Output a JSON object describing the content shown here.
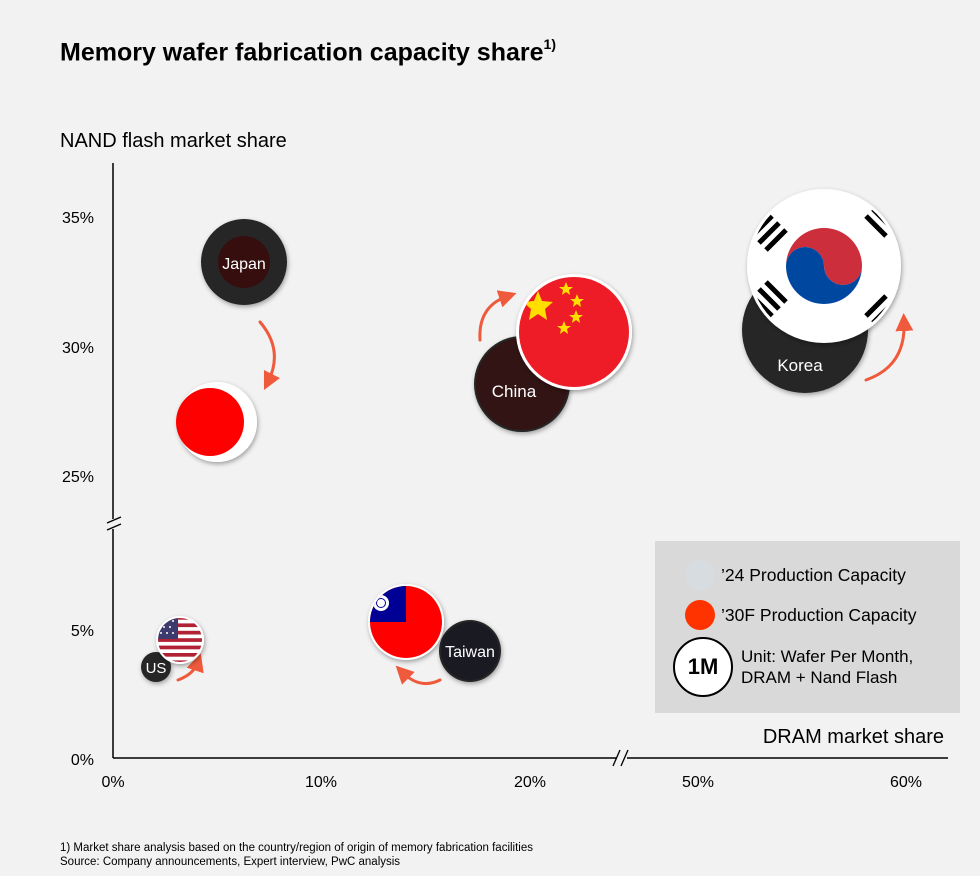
{
  "title": "Memory wafer fabrication capacity share",
  "title_sup": "1)",
  "chart_data": {
    "type": "bubble",
    "title": "Memory wafer fabrication capacity share",
    "xlabel": "DRAM market share",
    "ylabel": "NAND flash market share",
    "x_ticks": [
      "0%",
      "10%",
      "20%",
      "50%",
      "60%"
    ],
    "y_ticks": [
      "0%",
      "5%",
      "25%",
      "30%",
      "35%"
    ],
    "x_axis_break": "between 20% and 50%",
    "y_axis_break": "between 5% and 25%",
    "series": [
      {
        "name": "'24 Production Capacity",
        "points": [
          {
            "country": "Japan",
            "x": 6.2,
            "y": 33.3,
            "label": "Japan"
          },
          {
            "country": "China",
            "x": 19.5,
            "y": 28.6,
            "label": "China"
          },
          {
            "country": "Korea",
            "x": 54.5,
            "y": 30.7,
            "label": "Korea"
          },
          {
            "country": "US",
            "x": 2.0,
            "y": 3.5,
            "label": "US"
          },
          {
            "country": "Taiwan",
            "x": 17.0,
            "y": 4.2,
            "label": "Taiwan"
          }
        ]
      },
      {
        "name": "'30F Production Capacity",
        "points": [
          {
            "country": "Japan",
            "x": 5.0,
            "y": 27.0
          },
          {
            "country": "China",
            "x": 22.3,
            "y": 30.5
          },
          {
            "country": "Korea",
            "x": 56.0,
            "y": 33.0
          },
          {
            "country": "US",
            "x": 3.3,
            "y": 4.5
          },
          {
            "country": "Taiwan",
            "x": 14.0,
            "y": 5.2
          }
        ]
      }
    ]
  },
  "legend": {
    "item_2024": "’24 Production Capacity",
    "item_2030": "’30F Production Capacity",
    "unit_badge": "1M",
    "unit_line1": "Unit: Wafer Per Month,",
    "unit_line2": "DRAM + Nand Flash"
  },
  "colors": {
    "background": "#f2f2f2",
    "dark_bubble": "#262626",
    "japan_red": "#ff0000",
    "china_red": "#ee1c25",
    "china_star": "#ffde00",
    "korea_red": "#cd2e3a",
    "korea_blue": "#0047a0",
    "arrow": "#f05a3c",
    "legend_bg": "#d9d9d9",
    "legend_2024": "#d7dce0",
    "legend_2030": "#ff3300"
  },
  "footnote": {
    "line1": "1) Market share analysis based on the country/region of origin of memory fabrication facilities",
    "line2": "Source: Company announcements, Expert interview, PwC analysis"
  }
}
